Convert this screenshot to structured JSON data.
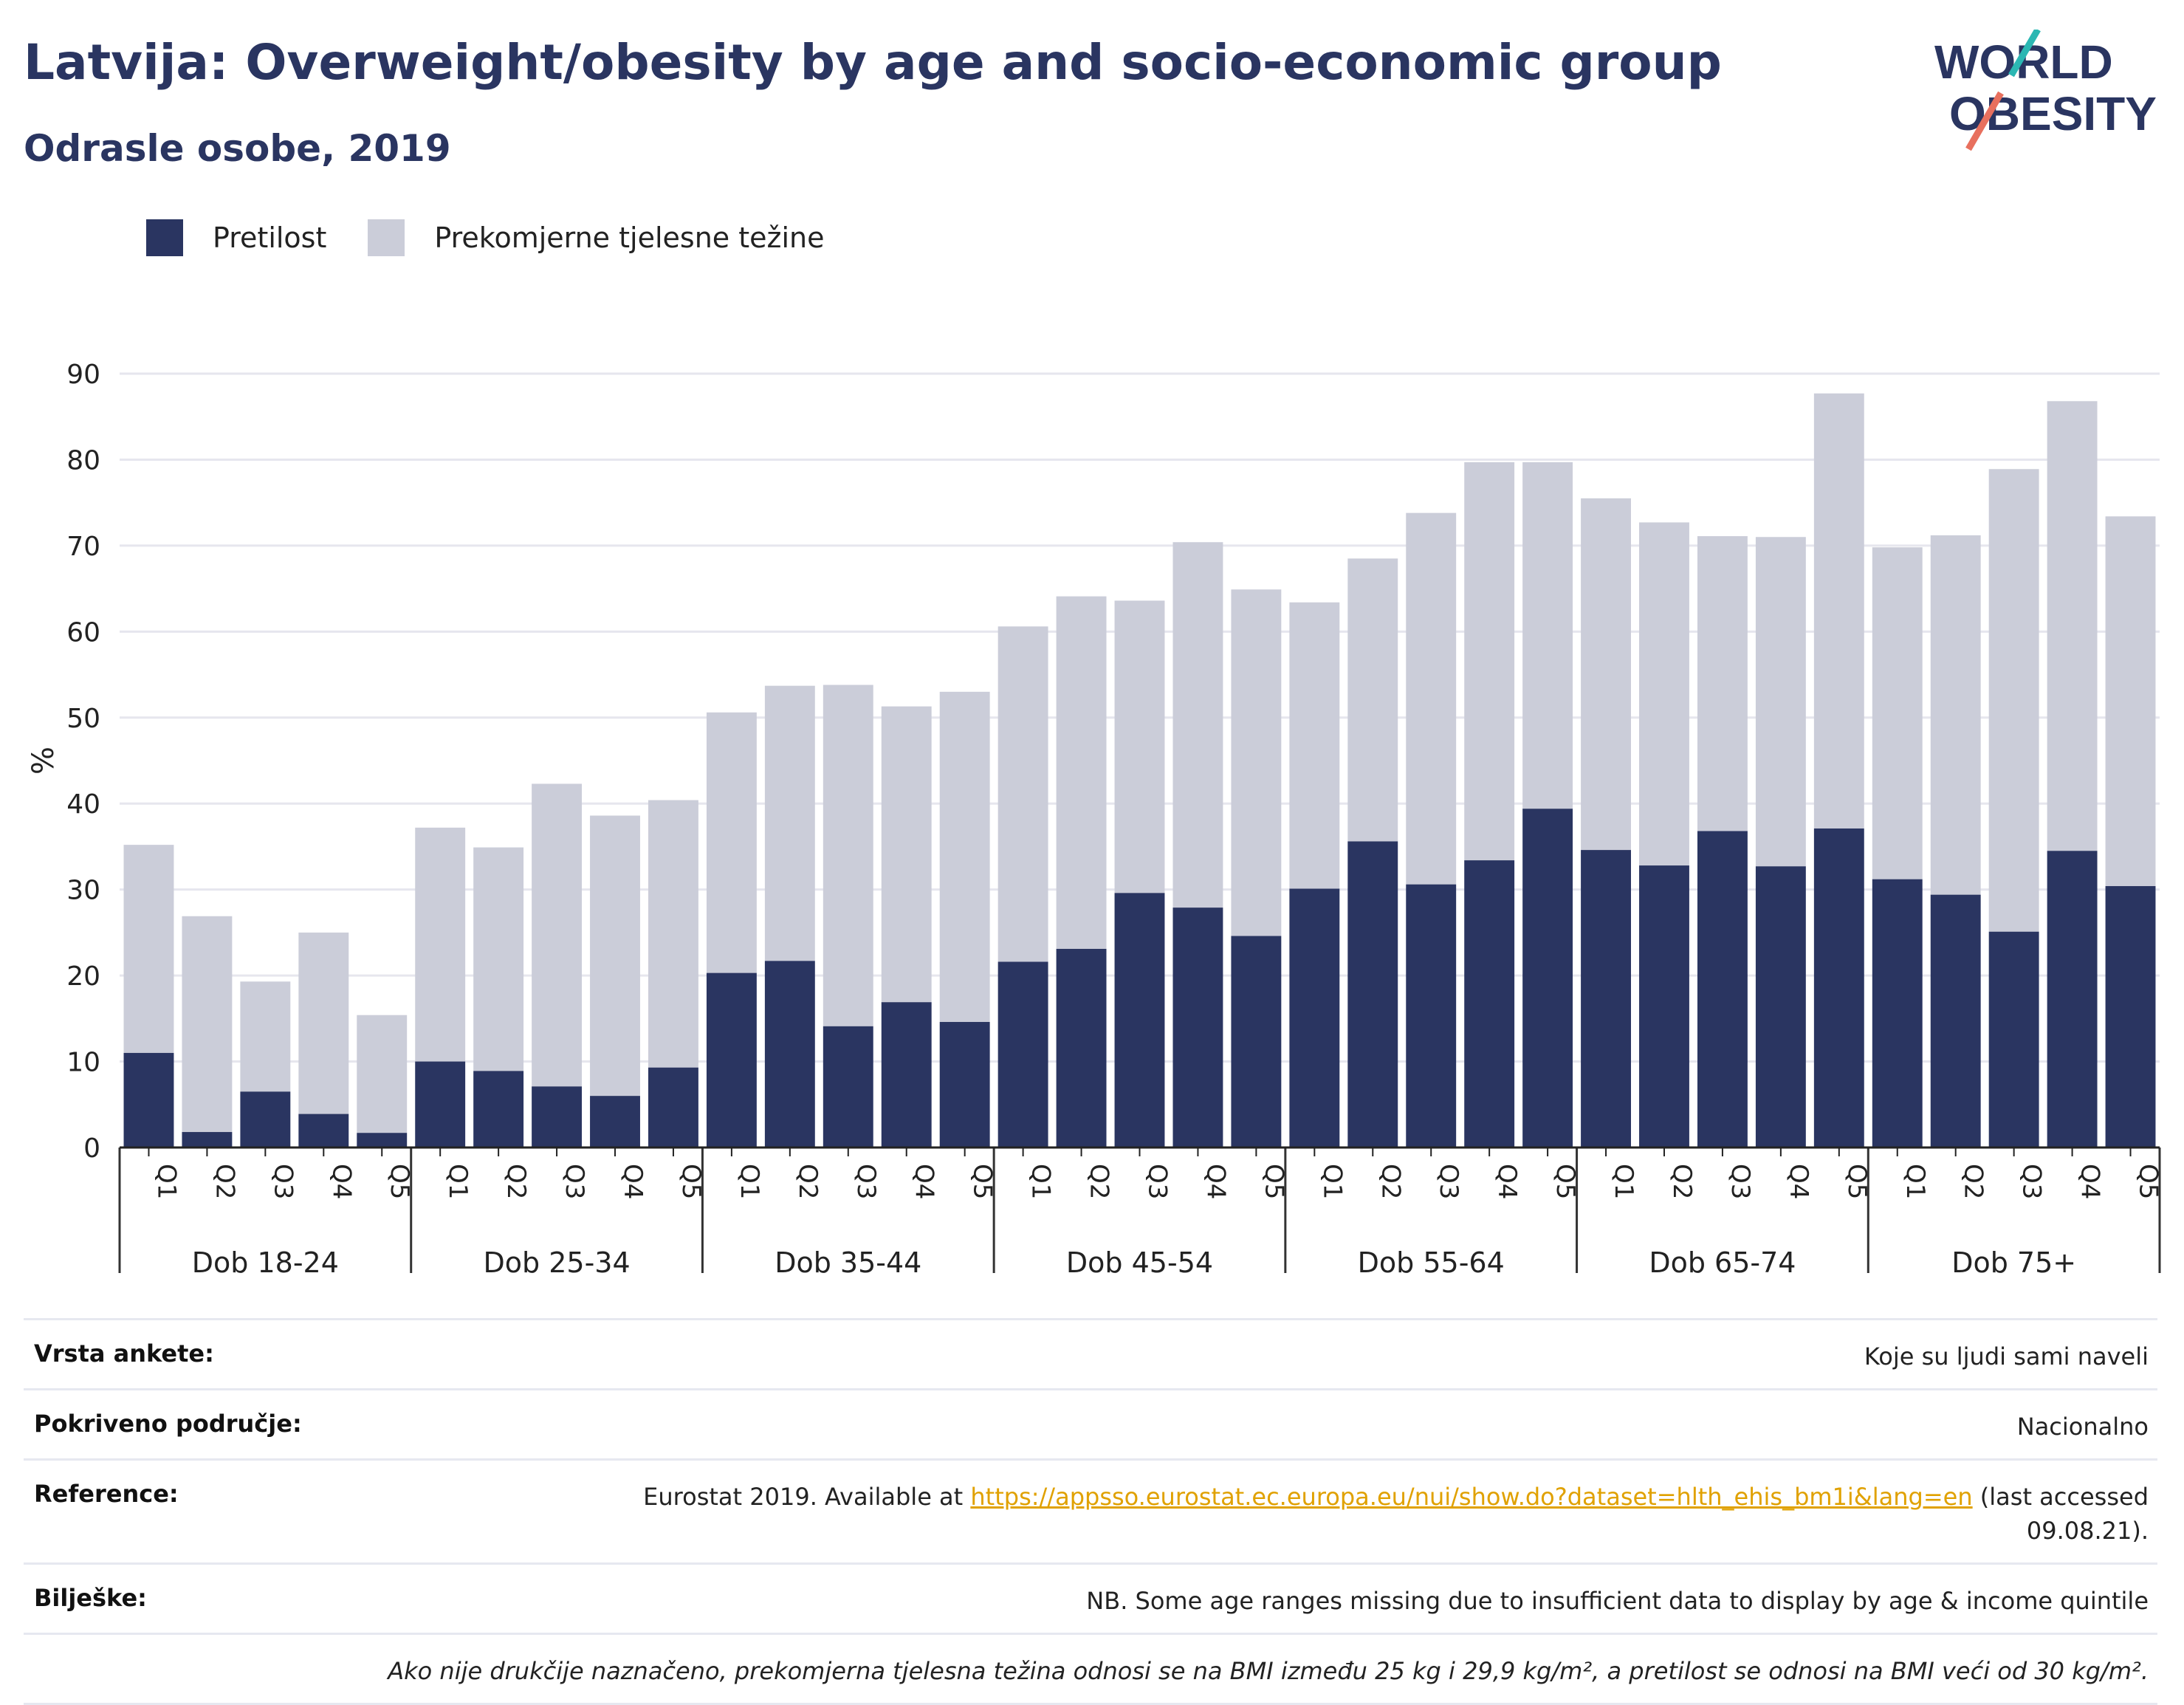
{
  "header": {
    "title": "Latvija: Overweight/obesity by age and socio-economic group",
    "subtitle": "Odrasle osobe, 2019"
  },
  "logo": {
    "line1": "WORLD",
    "line2": "OBESITY",
    "accent_teal": "#2bb7b3",
    "accent_coral": "#e8705e"
  },
  "colors": {
    "obesity": "#2a3561",
    "overweight": "#cbcdd9",
    "axis": "#222222",
    "grid": "#e6e6ee"
  },
  "legend": [
    {
      "label": "Pretilost",
      "color": "#2a3561"
    },
    {
      "label": "Prekomjerne tjelesne težine",
      "color": "#cbcdd9"
    }
  ],
  "chart_data": {
    "type": "bar",
    "stacked": true,
    "ylabel": "%",
    "ylim": [
      0,
      90
    ],
    "yticks": [
      0,
      10,
      20,
      30,
      40,
      50,
      60,
      70,
      80,
      90
    ],
    "grid": true,
    "legend_position": "top-left",
    "quintiles": [
      "Q1",
      "Q2",
      "Q3",
      "Q4",
      "Q5"
    ],
    "groups": [
      "Dob 18-24",
      "Dob 25-34",
      "Dob 35-44",
      "Dob 45-54",
      "Dob 55-64",
      "Dob 65-74",
      "Dob 75+"
    ],
    "series": [
      {
        "name": "Pretilost",
        "values": [
          [
            11.0,
            1.8,
            6.5,
            3.9,
            1.7
          ],
          [
            10.0,
            8.9,
            7.1,
            6.0,
            9.3
          ],
          [
            20.3,
            21.7,
            14.1,
            16.9,
            14.6
          ],
          [
            21.6,
            23.1,
            29.6,
            27.9,
            24.6
          ],
          [
            30.1,
            35.6,
            30.6,
            33.4,
            39.4
          ],
          [
            34.6,
            32.8,
            36.8,
            32.7,
            37.1
          ],
          [
            31.2,
            29.4,
            25.1,
            34.5,
            30.4
          ]
        ]
      },
      {
        "name": "Prekomjerne tjelesne težine",
        "values": [
          [
            24.2,
            25.1,
            12.8,
            21.1,
            13.7
          ],
          [
            27.2,
            26.0,
            35.2,
            32.6,
            31.1
          ],
          [
            30.3,
            32.0,
            39.7,
            34.4,
            38.4
          ],
          [
            39.0,
            41.0,
            34.0,
            42.5,
            40.3
          ],
          [
            33.3,
            32.9,
            43.2,
            46.3,
            40.3
          ],
          [
            40.9,
            39.9,
            34.3,
            38.3,
            50.6
          ],
          [
            38.6,
            41.8,
            53.8,
            52.3,
            43.0
          ]
        ]
      }
    ]
  },
  "info": {
    "survey_label": "Vrsta ankete:",
    "survey_value": "Koje su ljudi sami naveli",
    "area_label": "Pokriveno područje:",
    "area_value": "Nacionalno",
    "ref_label": "Reference:",
    "ref_pre": "Eurostat 2019. Available at ",
    "ref_link": "https://appsso.eurostat.ec.europa.eu/nui/show.do?dataset=hlth_ehis_bm1i&lang=en",
    "ref_post": " (last accessed",
    "ref_date": "09.08.21).",
    "notes_label": "Bilješke:",
    "notes_value": "NB. Some age ranges missing due to insufficient data to display by age & income quintile",
    "bmi_note": "Ako nije drukčije naznačeno, prekomjerna tjelesna težina odnosi se na BMI između 25 kg i 29,9 kg/m², a pretilost se odnosi na BMI veći od 30 kg/m²."
  }
}
